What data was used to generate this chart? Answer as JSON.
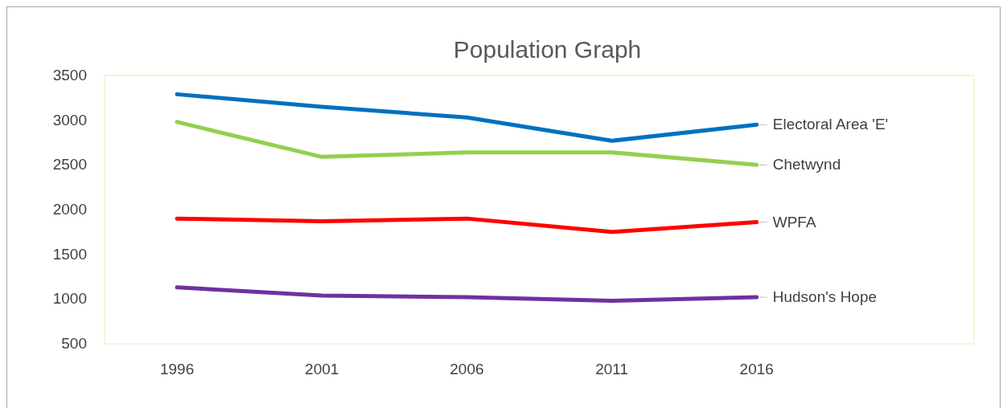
{
  "chart_data": {
    "type": "line",
    "title": "Population Graph",
    "categories": [
      "1996",
      "2001",
      "2006",
      "2011",
      "2016"
    ],
    "ylim": [
      500,
      3500
    ],
    "yticks": [
      500,
      1000,
      1500,
      2000,
      2500,
      3000,
      3500
    ],
    "grid": false,
    "marker": "none",
    "line_style": "solid",
    "series": [
      {
        "name": "Electoral Area 'E'",
        "color": "#0070c0",
        "values": [
          3290,
          3150,
          3030,
          2770,
          2950
        ]
      },
      {
        "name": "Chetwynd",
        "color": "#92d050",
        "values": [
          2980,
          2590,
          2640,
          2640,
          2500
        ]
      },
      {
        "name": "WPFA",
        "color": "#ff0000",
        "values": [
          1900,
          1870,
          1900,
          1750,
          1860
        ]
      },
      {
        "name": "Hudson's Hope",
        "color": "#7030a0",
        "values": [
          1130,
          1040,
          1020,
          980,
          1020
        ]
      }
    ]
  }
}
